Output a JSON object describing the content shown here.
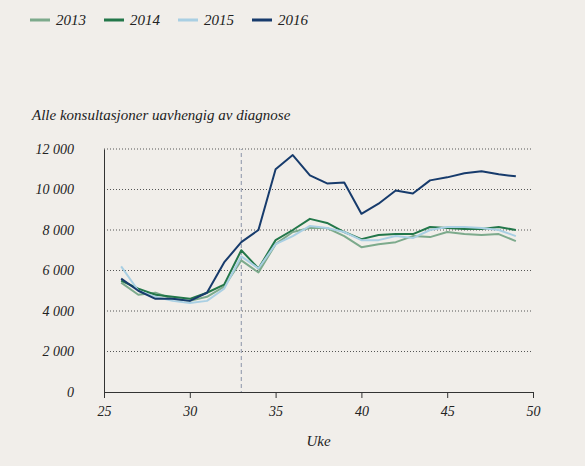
{
  "chart_data": {
    "type": "line",
    "title": "Alle konsultasjoner uavhengig av diagnose",
    "x_label": "Uke",
    "x": [
      26,
      27,
      28,
      29,
      30,
      31,
      32,
      33,
      34,
      35,
      36,
      37,
      38,
      39,
      40,
      41,
      42,
      43,
      44,
      45,
      46,
      47,
      48,
      49
    ],
    "series": [
      {
        "name": "2013",
        "color": "#7daa8c",
        "values": [
          5400,
          4800,
          4900,
          4600,
          4500,
          4700,
          5200,
          6500,
          5900,
          7300,
          7900,
          8100,
          8100,
          7700,
          7150,
          7300,
          7400,
          7700,
          7650,
          7900,
          7800,
          7750,
          7800,
          7450
        ]
      },
      {
        "name": "2014",
        "color": "#23774a",
        "values": [
          5500,
          5100,
          4800,
          4700,
          4600,
          4900,
          5300,
          7000,
          6100,
          7500,
          8000,
          8550,
          8350,
          7900,
          7550,
          7750,
          7800,
          7800,
          8150,
          8100,
          8050,
          8050,
          8150,
          8000
        ]
      },
      {
        "name": "2015",
        "color": "#a9cfe3",
        "values": [
          6200,
          5000,
          4700,
          4500,
          4400,
          4500,
          5100,
          6700,
          6100,
          7300,
          7700,
          8200,
          8100,
          7900,
          7500,
          7500,
          7700,
          7600,
          8000,
          8150,
          8150,
          8100,
          8000,
          7700
        ]
      },
      {
        "name": "2016",
        "color": "#173b6c",
        "values": [
          5600,
          5000,
          4600,
          4600,
          4500,
          4900,
          6400,
          7400,
          8000,
          11000,
          11700,
          10700,
          10300,
          10350,
          8800,
          9300,
          9950,
          9800,
          10450,
          10600,
          10800,
          10900,
          10750,
          10650
        ]
      }
    ],
    "reference_x": 33,
    "xlim": [
      25,
      50
    ],
    "xticks": [
      25,
      30,
      35,
      40,
      45,
      50
    ],
    "ylim": [
      0,
      12000
    ],
    "yticks": [
      0,
      {
        "value": 2000,
        "label": "2 000"
      },
      {
        "value": 4000,
        "label": "4 000"
      },
      {
        "value": 6000,
        "label": "6 000"
      },
      {
        "value": 8000,
        "label": "8 000"
      },
      {
        "value": 10000,
        "label": "10 000"
      },
      {
        "value": 12000,
        "label": "12 000"
      }
    ],
    "grid": true,
    "legend": "top"
  }
}
